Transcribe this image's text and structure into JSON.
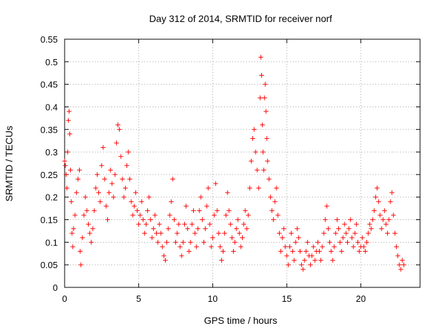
{
  "chart_data": {
    "type": "scatter",
    "title": "Day 312 of 2014, SRMTID for receiver norf",
    "xlabel": "GPS time / hours",
    "ylabel": "SRMTID / TECUs",
    "xlim": [
      0,
      24
    ],
    "ylim": [
      0,
      0.55
    ],
    "xticks": [
      0,
      5,
      10,
      15,
      20
    ],
    "yticks": [
      0,
      0.05,
      0.1,
      0.15,
      0.2,
      0.25,
      0.3,
      0.35,
      0.4,
      0.45,
      0.5,
      0.55
    ],
    "xtick_labels": [
      "0",
      "5",
      "10",
      "15",
      "20"
    ],
    "ytick_labels": [
      "0",
      "0.05",
      "0.1",
      "0.15",
      "0.2",
      "0.25",
      "0.3",
      "0.35",
      "0.4",
      "0.45",
      "0.5",
      "0.55"
    ],
    "grid": true,
    "marker": "+",
    "color": "#ff0000",
    "series": [
      {
        "name": "SRMTID",
        "points": [
          [
            0.0,
            0.28
          ],
          [
            0.05,
            0.27
          ],
          [
            0.1,
            0.25
          ],
          [
            0.15,
            0.22
          ],
          [
            0.2,
            0.3
          ],
          [
            0.25,
            0.37
          ],
          [
            0.3,
            0.39
          ],
          [
            0.35,
            0.34
          ],
          [
            0.4,
            0.26
          ],
          [
            0.45,
            0.19
          ],
          [
            0.5,
            0.12
          ],
          [
            0.55,
            0.09
          ],
          [
            0.6,
            0.13
          ],
          [
            0.7,
            0.16
          ],
          [
            0.8,
            0.21
          ],
          [
            0.9,
            0.24
          ],
          [
            1.0,
            0.26
          ],
          [
            1.05,
            0.08
          ],
          [
            1.1,
            0.05
          ],
          [
            1.2,
            0.11
          ],
          [
            1.3,
            0.16
          ],
          [
            1.4,
            0.2
          ],
          [
            1.5,
            0.17
          ],
          [
            1.6,
            0.14
          ],
          [
            1.7,
            0.12
          ],
          [
            1.8,
            0.1
          ],
          [
            1.9,
            0.13
          ],
          [
            2.0,
            0.17
          ],
          [
            2.1,
            0.22
          ],
          [
            2.2,
            0.25
          ],
          [
            2.3,
            0.21
          ],
          [
            2.4,
            0.19
          ],
          [
            2.5,
            0.27
          ],
          [
            2.6,
            0.31
          ],
          [
            2.7,
            0.24
          ],
          [
            2.8,
            0.18
          ],
          [
            2.9,
            0.15
          ],
          [
            3.0,
            0.21
          ],
          [
            3.1,
            0.26
          ],
          [
            3.2,
            0.23
          ],
          [
            3.3,
            0.2
          ],
          [
            3.4,
            0.25
          ],
          [
            3.5,
            0.32
          ],
          [
            3.6,
            0.36
          ],
          [
            3.7,
            0.35
          ],
          [
            3.8,
            0.29
          ],
          [
            3.9,
            0.24
          ],
          [
            4.0,
            0.2
          ],
          [
            4.1,
            0.22
          ],
          [
            4.2,
            0.27
          ],
          [
            4.3,
            0.3
          ],
          [
            4.4,
            0.24
          ],
          [
            4.5,
            0.19
          ],
          [
            4.6,
            0.16
          ],
          [
            4.7,
            0.18
          ],
          [
            4.8,
            0.21
          ],
          [
            4.9,
            0.17
          ],
          [
            5.0,
            0.14
          ],
          [
            5.1,
            0.16
          ],
          [
            5.2,
            0.19
          ],
          [
            5.3,
            0.15
          ],
          [
            5.4,
            0.12
          ],
          [
            5.5,
            0.14
          ],
          [
            5.6,
            0.17
          ],
          [
            5.7,
            0.2
          ],
          [
            5.8,
            0.15
          ],
          [
            5.9,
            0.11
          ],
          [
            6.0,
            0.13
          ],
          [
            6.1,
            0.16
          ],
          [
            6.2,
            0.12
          ],
          [
            6.3,
            0.1
          ],
          [
            6.4,
            0.14
          ],
          [
            6.5,
            0.12
          ],
          [
            6.6,
            0.09
          ],
          [
            6.7,
            0.07
          ],
          [
            6.8,
            0.06
          ],
          [
            6.9,
            0.1
          ],
          [
            7.0,
            0.13
          ],
          [
            7.1,
            0.16
          ],
          [
            7.2,
            0.19
          ],
          [
            7.3,
            0.24
          ],
          [
            7.4,
            0.15
          ],
          [
            7.5,
            0.1
          ],
          [
            7.6,
            0.12
          ],
          [
            7.7,
            0.14
          ],
          [
            7.8,
            0.09
          ],
          [
            7.9,
            0.07
          ],
          [
            8.0,
            0.1
          ],
          [
            8.1,
            0.14
          ],
          [
            8.2,
            0.18
          ],
          [
            8.3,
            0.13
          ],
          [
            8.4,
            0.08
          ],
          [
            8.5,
            0.1
          ],
          [
            8.6,
            0.14
          ],
          [
            8.7,
            0.17
          ],
          [
            8.8,
            0.12
          ],
          [
            8.9,
            0.09
          ],
          [
            9.0,
            0.13
          ],
          [
            9.1,
            0.17
          ],
          [
            9.2,
            0.2
          ],
          [
            9.3,
            0.15
          ],
          [
            9.4,
            0.1
          ],
          [
            9.5,
            0.13
          ],
          [
            9.6,
            0.18
          ],
          [
            9.7,
            0.22
          ],
          [
            9.8,
            0.14
          ],
          [
            9.9,
            0.09
          ],
          [
            10.0,
            0.11
          ],
          [
            10.1,
            0.16
          ],
          [
            10.2,
            0.23
          ],
          [
            10.3,
            0.17
          ],
          [
            10.4,
            0.12
          ],
          [
            10.5,
            0.09
          ],
          [
            10.6,
            0.06
          ],
          [
            10.7,
            0.08
          ],
          [
            10.8,
            0.12
          ],
          [
            10.9,
            0.16
          ],
          [
            11.0,
            0.21
          ],
          [
            11.1,
            0.17
          ],
          [
            11.2,
            0.14
          ],
          [
            11.3,
            0.11
          ],
          [
            11.4,
            0.08
          ],
          [
            11.5,
            0.1
          ],
          [
            11.6,
            0.13
          ],
          [
            11.7,
            0.15
          ],
          [
            11.8,
            0.12
          ],
          [
            11.9,
            0.09
          ],
          [
            12.0,
            0.11
          ],
          [
            12.1,
            0.14
          ],
          [
            12.2,
            0.17
          ],
          [
            12.3,
            0.13
          ],
          [
            12.4,
            0.16
          ],
          [
            12.5,
            0.22
          ],
          [
            12.6,
            0.28
          ],
          [
            12.7,
            0.33
          ],
          [
            12.8,
            0.35
          ],
          [
            12.9,
            0.3
          ],
          [
            13.0,
            0.26
          ],
          [
            13.1,
            0.22
          ],
          [
            13.2,
            0.42
          ],
          [
            13.25,
            0.51
          ],
          [
            13.3,
            0.47
          ],
          [
            13.35,
            0.36
          ],
          [
            13.4,
            0.3
          ],
          [
            13.45,
            0.26
          ],
          [
            13.5,
            0.42
          ],
          [
            13.55,
            0.45
          ],
          [
            13.6,
            0.39
          ],
          [
            13.65,
            0.33
          ],
          [
            13.7,
            0.28
          ],
          [
            13.8,
            0.24
          ],
          [
            13.9,
            0.2
          ],
          [
            14.0,
            0.17
          ],
          [
            14.1,
            0.15
          ],
          [
            14.2,
            0.19
          ],
          [
            14.3,
            0.22
          ],
          [
            14.4,
            0.16
          ],
          [
            14.5,
            0.12
          ],
          [
            14.6,
            0.08
          ],
          [
            14.7,
            0.11
          ],
          [
            14.8,
            0.13
          ],
          [
            14.9,
            0.09
          ],
          [
            15.0,
            0.07
          ],
          [
            15.1,
            0.05
          ],
          [
            15.2,
            0.09
          ],
          [
            15.3,
            0.12
          ],
          [
            15.4,
            0.08
          ],
          [
            15.5,
            0.06
          ],
          [
            15.6,
            0.1
          ],
          [
            15.7,
            0.13
          ],
          [
            15.8,
            0.11
          ],
          [
            15.9,
            0.08
          ],
          [
            16.0,
            0.05
          ],
          [
            16.1,
            0.04
          ],
          [
            16.2,
            0.06
          ],
          [
            16.3,
            0.08
          ],
          [
            16.4,
            0.1
          ],
          [
            16.5,
            0.07
          ],
          [
            16.6,
            0.05
          ],
          [
            16.7,
            0.07
          ],
          [
            16.8,
            0.09
          ],
          [
            16.9,
            0.06
          ],
          [
            17.0,
            0.08
          ],
          [
            17.1,
            0.1
          ],
          [
            17.2,
            0.08
          ],
          [
            17.3,
            0.06
          ],
          [
            17.4,
            0.09
          ],
          [
            17.5,
            0.12
          ],
          [
            17.6,
            0.15
          ],
          [
            17.7,
            0.18
          ],
          [
            17.8,
            0.13
          ],
          [
            17.9,
            0.1
          ],
          [
            18.0,
            0.08
          ],
          [
            18.1,
            0.06
          ],
          [
            18.2,
            0.09
          ],
          [
            18.3,
            0.12
          ],
          [
            18.4,
            0.15
          ],
          [
            18.5,
            0.13
          ],
          [
            18.6,
            0.1
          ],
          [
            18.7,
            0.08
          ],
          [
            18.8,
            0.11
          ],
          [
            18.9,
            0.14
          ],
          [
            19.0,
            0.12
          ],
          [
            19.1,
            0.1
          ],
          [
            19.2,
            0.13
          ],
          [
            19.3,
            0.15
          ],
          [
            19.4,
            0.11
          ],
          [
            19.5,
            0.09
          ],
          [
            19.6,
            0.12
          ],
          [
            19.7,
            0.14
          ],
          [
            19.8,
            0.1
          ],
          [
            19.9,
            0.08
          ],
          [
            20.0,
            0.09
          ],
          [
            20.1,
            0.11
          ],
          [
            20.2,
            0.09
          ],
          [
            20.3,
            0.08
          ],
          [
            20.4,
            0.1
          ],
          [
            20.5,
            0.12
          ],
          [
            20.6,
            0.14
          ],
          [
            20.7,
            0.13
          ],
          [
            20.8,
            0.15
          ],
          [
            20.9,
            0.17
          ],
          [
            21.0,
            0.2
          ],
          [
            21.1,
            0.22
          ],
          [
            21.2,
            0.19
          ],
          [
            21.3,
            0.16
          ],
          [
            21.4,
            0.13
          ],
          [
            21.5,
            0.15
          ],
          [
            21.6,
            0.17
          ],
          [
            21.7,
            0.14
          ],
          [
            21.8,
            0.12
          ],
          [
            21.9,
            0.15
          ],
          [
            22.0,
            0.19
          ],
          [
            22.1,
            0.21
          ],
          [
            22.2,
            0.16
          ],
          [
            22.3,
            0.12
          ],
          [
            22.4,
            0.09
          ],
          [
            22.5,
            0.07
          ],
          [
            22.6,
            0.05
          ],
          [
            22.7,
            0.04
          ],
          [
            22.8,
            0.06
          ],
          [
            22.9,
            0.05
          ]
        ]
      }
    ]
  }
}
